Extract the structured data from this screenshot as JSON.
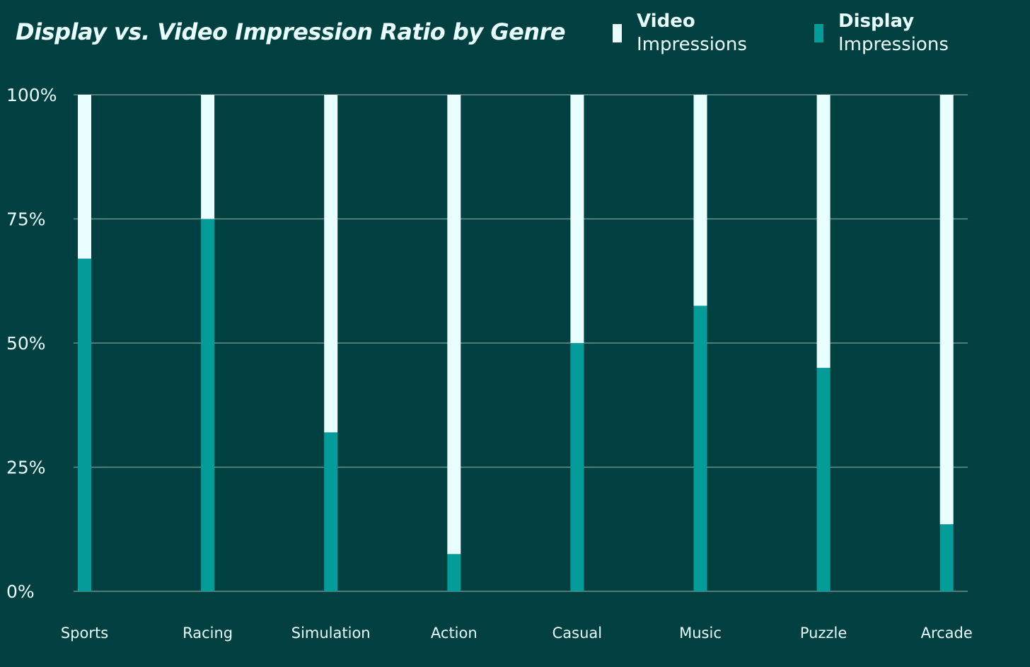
{
  "chart_data": {
    "type": "bar",
    "stacked": true,
    "title": "Display vs. Video Impression Ratio by Genre",
    "categories": [
      "Sports",
      "Racing",
      "Simulation",
      "Action",
      "Casual",
      "Music",
      "Puzzle",
      "Arcade"
    ],
    "series": [
      {
        "name_bold": "Display",
        "name_rest": "Impressions",
        "color": "#049C98",
        "values": [
          67,
          75,
          32,
          7.5,
          50,
          57.5,
          45,
          13.5
        ]
      },
      {
        "name_bold": "Video",
        "name_rest": "Impressions",
        "color": "#E9FFFF",
        "values": [
          33,
          25,
          68,
          92.5,
          50,
          42.5,
          55,
          86.5
        ]
      }
    ],
    "ylim": [
      0,
      100
    ],
    "yticks": [
      0,
      25,
      50,
      75,
      100
    ],
    "ytick_labels": [
      "0%",
      "25%",
      "50%",
      "75%",
      "100%"
    ],
    "grid": true,
    "legend_position": "top-right",
    "legend": [
      {
        "bold": "Video",
        "rest": "Impressions",
        "color": "#E9FFFF"
      },
      {
        "bold": "Display",
        "rest": "Impressions",
        "color": "#049C98"
      }
    ],
    "colors": {
      "background": "#014040",
      "gridline": "#6E8E8E",
      "text": "#E9FFFF"
    }
  }
}
